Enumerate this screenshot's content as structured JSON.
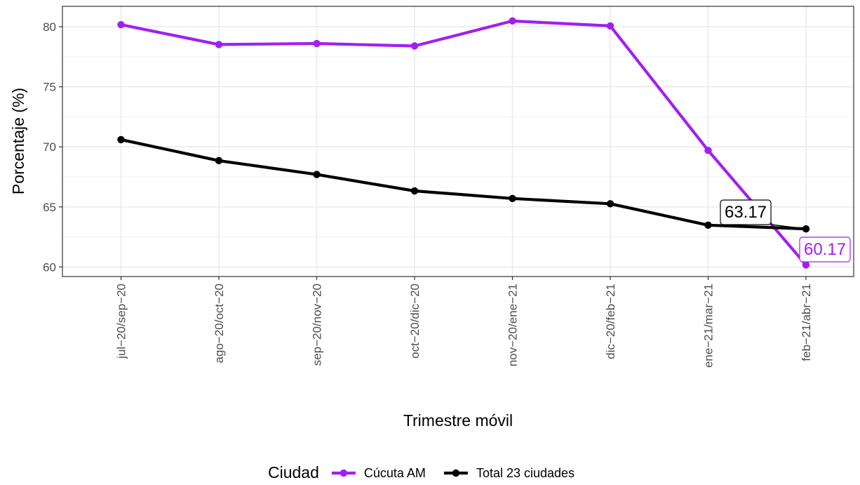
{
  "chart_data": {
    "type": "line",
    "xlabel": "Trimestre móvil",
    "ylabel": "Porcentaje (%)",
    "categories": [
      "jul−20/sep−20",
      "ago−20/oct−20",
      "sep−20/nov−20",
      "oct−20/dic−20",
      "nov−20/ene−21",
      "dic−20/feb−21",
      "ene−21/mar−21",
      "feb−21/abr−21"
    ],
    "ylim": [
      59.2,
      81.7
    ],
    "yticks": [
      60,
      65,
      70,
      75,
      80
    ],
    "grid": true,
    "legend": {
      "title": "Ciudad",
      "position": "bottom"
    },
    "series": [
      {
        "name": "Cúcuta AM",
        "color": "#a020f0",
        "values": [
          80.17,
          78.52,
          78.6,
          78.4,
          80.48,
          80.07,
          69.7,
          60.17
        ]
      },
      {
        "name": "Total 23 ciudades",
        "color": "#000000",
        "values": [
          70.6,
          68.85,
          67.7,
          66.33,
          65.7,
          65.26,
          63.48,
          63.17
        ]
      }
    ],
    "annotations": [
      {
        "series": 0,
        "index": 7,
        "text": "60.17"
      },
      {
        "series": 1,
        "index": 7,
        "text": "63.17"
      }
    ]
  }
}
